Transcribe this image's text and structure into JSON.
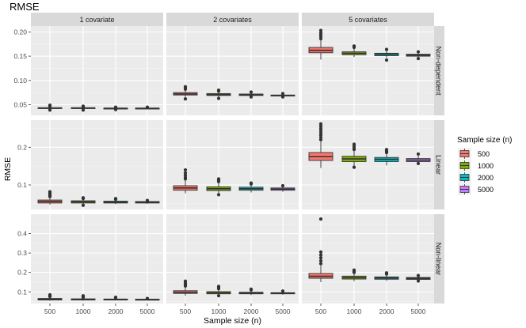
{
  "chart_data": {
    "type": "box",
    "title": "RMSE",
    "xlabel": "Sample size (n)",
    "ylabel": "RMSE",
    "categories": [
      "500",
      "1000",
      "2000",
      "5000"
    ],
    "legend": {
      "title": "Sample size (n)",
      "placement": "right",
      "entries": [
        {
          "label": "500",
          "color": "#F8766D"
        },
        {
          "label": "1000",
          "color": "#7CAE00"
        },
        {
          "label": "2000",
          "color": "#00BFC4"
        },
        {
          "label": "5000",
          "color": "#C77CFF"
        }
      ]
    },
    "columns": [
      "1 covariate",
      "2 covariates",
      "5 covariates"
    ],
    "rows": [
      {
        "label": "Non-dependent",
        "ylim": [
          0.028,
          0.212
        ],
        "yticks": [
          0.05,
          0.1,
          0.15,
          0.2
        ],
        "ytick_labels": [
          "0.05",
          "0.10",
          "0.15",
          "0.20"
        ],
        "boxes": [
          [
            {
              "q1": 0.042,
              "median": 0.043,
              "q3": 0.044,
              "lo": 0.04,
              "hi": 0.046,
              "out": [
                0.039,
                0.047,
                0.048,
                0.049
              ]
            },
            {
              "q1": 0.042,
              "median": 0.043,
              "q3": 0.044,
              "lo": 0.04,
              "hi": 0.045,
              "out": [
                0.039,
                0.046,
                0.047
              ]
            },
            {
              "q1": 0.042,
              "median": 0.0425,
              "q3": 0.043,
              "lo": 0.041,
              "hi": 0.0445,
              "out": [
                0.04,
                0.045
              ]
            },
            {
              "q1": 0.042,
              "median": 0.0425,
              "q3": 0.043,
              "lo": 0.041,
              "hi": 0.0445,
              "out": [
                0.045
              ]
            }
          ],
          [
            {
              "q1": 0.07,
              "median": 0.072,
              "q3": 0.075,
              "lo": 0.066,
              "hi": 0.08,
              "out": [
                0.062,
                0.082,
                0.085,
                0.087
              ]
            },
            {
              "q1": 0.069,
              "median": 0.071,
              "q3": 0.073,
              "lo": 0.066,
              "hi": 0.076,
              "out": [
                0.063,
                0.078,
                0.08
              ]
            },
            {
              "q1": 0.069,
              "median": 0.07,
              "q3": 0.072,
              "lo": 0.067,
              "hi": 0.074,
              "out": [
                0.066,
                0.076
              ]
            },
            {
              "q1": 0.068,
              "median": 0.069,
              "q3": 0.07,
              "lo": 0.067,
              "hi": 0.072,
              "out": [
                0.066,
                0.073
              ]
            }
          ],
          [
            {
              "q1": 0.157,
              "median": 0.162,
              "q3": 0.168,
              "lo": 0.143,
              "hi": 0.183,
              "out": [
                0.186,
                0.19,
                0.194,
                0.198,
                0.203
              ]
            },
            {
              "q1": 0.153,
              "median": 0.156,
              "q3": 0.159,
              "lo": 0.148,
              "hi": 0.165,
              "out": [
                0.168,
                0.171
              ]
            },
            {
              "q1": 0.151,
              "median": 0.154,
              "q3": 0.156,
              "lo": 0.147,
              "hi": 0.161,
              "out": [
                0.142,
                0.164
              ]
            },
            {
              "q1": 0.15,
              "median": 0.152,
              "q3": 0.154,
              "lo": 0.147,
              "hi": 0.157,
              "out": [
                0.145,
                0.159
              ]
            }
          ]
        ]
      },
      {
        "label": "Linear",
        "ylim": [
          0.035,
          0.272
        ],
        "yticks": [
          0.1,
          0.2
        ],
        "ytick_labels": [
          "0.1",
          "0.2"
        ],
        "boxes": [
          [
            {
              "q1": 0.052,
              "median": 0.056,
              "q3": 0.06,
              "lo": 0.048,
              "hi": 0.066,
              "out": [
                0.069,
                0.072,
                0.075,
                0.078,
                0.082
              ]
            },
            {
              "q1": 0.052,
              "median": 0.055,
              "q3": 0.058,
              "lo": 0.048,
              "hi": 0.062,
              "out": [
                0.046,
                0.064,
                0.066
              ]
            },
            {
              "q1": 0.052,
              "median": 0.054,
              "q3": 0.057,
              "lo": 0.049,
              "hi": 0.06,
              "out": [
                0.062,
                0.064
              ]
            },
            {
              "q1": 0.052,
              "median": 0.054,
              "q3": 0.056,
              "lo": 0.05,
              "hi": 0.058,
              "out": [
                0.059
              ]
            }
          ],
          [
            {
              "q1": 0.086,
              "median": 0.092,
              "q3": 0.098,
              "lo": 0.078,
              "hi": 0.112,
              "out": [
                0.116,
                0.12,
                0.126,
                0.132,
                0.14
              ]
            },
            {
              "q1": 0.085,
              "median": 0.09,
              "q3": 0.095,
              "lo": 0.078,
              "hi": 0.105,
              "out": [
                0.074,
                0.109,
                0.112,
                0.116
              ]
            },
            {
              "q1": 0.086,
              "median": 0.09,
              "q3": 0.094,
              "lo": 0.08,
              "hi": 0.1,
              "out": [
                0.103,
                0.105
              ]
            },
            {
              "q1": 0.086,
              "median": 0.089,
              "q3": 0.092,
              "lo": 0.082,
              "hi": 0.096,
              "out": [
                0.098
              ]
            }
          ],
          [
            {
              "q1": 0.165,
              "median": 0.175,
              "q3": 0.186,
              "lo": 0.145,
              "hi": 0.215,
              "out": [
                0.22,
                0.226,
                0.232,
                0.238,
                0.244,
                0.25,
                0.256,
                0.262
              ]
            },
            {
              "q1": 0.162,
              "median": 0.169,
              "q3": 0.176,
              "lo": 0.15,
              "hi": 0.19,
              "out": [
                0.147,
                0.194,
                0.198,
                0.203,
                0.208
              ]
            },
            {
              "q1": 0.162,
              "median": 0.168,
              "q3": 0.173,
              "lo": 0.152,
              "hi": 0.184,
              "out": [
                0.186,
                0.19,
                0.194
              ]
            },
            {
              "q1": 0.162,
              "median": 0.166,
              "q3": 0.17,
              "lo": 0.155,
              "hi": 0.178,
              "out": [
                0.157,
                0.182
              ]
            }
          ]
        ]
      },
      {
        "label": "Non-linear",
        "ylim": [
          0.04,
          0.5
        ],
        "yticks": [
          0.1,
          0.2,
          0.3,
          0.4
        ],
        "ytick_labels": [
          "0.1",
          "0.2",
          "0.3",
          "0.4"
        ],
        "boxes": [
          [
            {
              "q1": 0.058,
              "median": 0.062,
              "q3": 0.066,
              "lo": 0.054,
              "hi": 0.072,
              "out": [
                0.076,
                0.08,
                0.085
              ]
            },
            {
              "q1": 0.058,
              "median": 0.061,
              "q3": 0.064,
              "lo": 0.054,
              "hi": 0.069,
              "out": [
                0.072,
                0.076,
                0.08
              ]
            },
            {
              "q1": 0.058,
              "median": 0.06,
              "q3": 0.063,
              "lo": 0.055,
              "hi": 0.067,
              "out": [
                0.07,
                0.072
              ]
            },
            {
              "q1": 0.058,
              "median": 0.06,
              "q3": 0.062,
              "lo": 0.056,
              "hi": 0.065,
              "out": [
                0.066
              ]
            }
          ],
          [
            {
              "q1": 0.092,
              "median": 0.098,
              "q3": 0.106,
              "lo": 0.08,
              "hi": 0.125,
              "out": [
                0.13,
                0.138,
                0.146,
                0.155
              ]
            },
            {
              "q1": 0.09,
              "median": 0.095,
              "q3": 0.101,
              "lo": 0.082,
              "hi": 0.112,
              "out": [
                0.08,
                0.116,
                0.122,
                0.128
              ]
            },
            {
              "q1": 0.09,
              "median": 0.094,
              "q3": 0.098,
              "lo": 0.083,
              "hi": 0.106,
              "out": [
                0.11,
                0.114
              ]
            },
            {
              "q1": 0.09,
              "median": 0.093,
              "q3": 0.096,
              "lo": 0.085,
              "hi": 0.101,
              "out": [
                0.104
              ]
            }
          ],
          [
            {
              "q1": 0.17,
              "median": 0.18,
              "q3": 0.195,
              "lo": 0.15,
              "hi": 0.235,
              "out": [
                0.245,
                0.26,
                0.275,
                0.29,
                0.305,
                0.475
              ]
            },
            {
              "q1": 0.166,
              "median": 0.173,
              "q3": 0.181,
              "lo": 0.155,
              "hi": 0.196,
              "out": [
                0.2,
                0.206,
                0.212
              ]
            },
            {
              "q1": 0.165,
              "median": 0.171,
              "q3": 0.177,
              "lo": 0.157,
              "hi": 0.188,
              "out": [
                0.192,
                0.198
              ]
            },
            {
              "q1": 0.164,
              "median": 0.169,
              "q3": 0.174,
              "lo": 0.158,
              "hi": 0.18,
              "out": [
                0.156,
                0.184
              ]
            }
          ]
        ]
      }
    ]
  }
}
